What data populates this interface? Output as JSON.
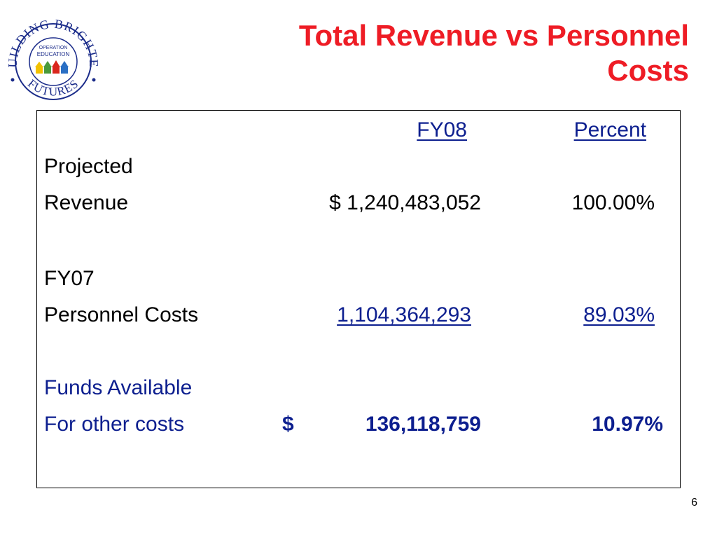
{
  "slide": {
    "title_line1": "Total Revenue vs Personnel",
    "title_line2": "Costs",
    "page_number": "6"
  },
  "logo": {
    "arc_top": "BUILDING BRIGHTER",
    "arc_bottom": "FUTURES",
    "center_line1": "OPERATION",
    "center_line2": "EDUCATION"
  },
  "table": {
    "headers": {
      "fy08": "FY08",
      "percent": "Percent"
    },
    "rows": [
      {
        "label1": "Projected",
        "label2": "Revenue",
        "amount": "$ 1,240,483,052",
        "percent": "100.00%"
      },
      {
        "label1": "FY07",
        "label2": "Personnel Costs",
        "amount": "1,104,364,293",
        "percent": "89.03%"
      },
      {
        "label1": "Funds Available",
        "label2": "For other costs",
        "currency": "$",
        "amount": "136,118,759",
        "percent": "10.97%"
      }
    ]
  },
  "colors": {
    "title": "#ee1c25",
    "accent": "#0d1f8f",
    "border": "#000000"
  }
}
